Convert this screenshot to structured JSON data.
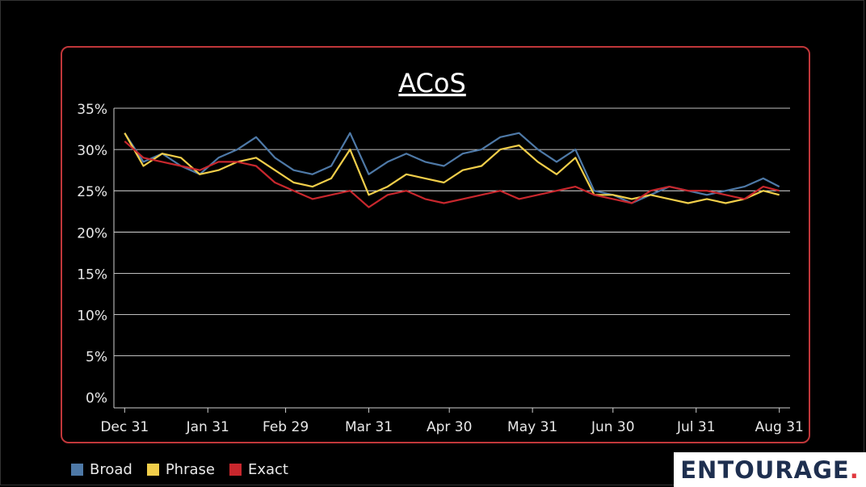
{
  "chart_data": {
    "type": "line",
    "title": "ACoS",
    "xlabel": "",
    "ylabel": "",
    "ylim": [
      -0.013,
      0.35
    ],
    "yticks": [
      0,
      0.05,
      0.1,
      0.15,
      0.2,
      0.25,
      0.3,
      0.35
    ],
    "ytick_labels": [
      "0%",
      "5%",
      "10%",
      "15%",
      "20%",
      "25%",
      "30%",
      "35%"
    ],
    "xlim": [
      "2023-12-27",
      "2024-09-04"
    ],
    "xticks": [
      "2023-12-31",
      "2024-01-31",
      "2024-02-29",
      "2024-03-31",
      "2024-04-30",
      "2024-05-31",
      "2024-06-30",
      "2024-07-31",
      "2024-08-31"
    ],
    "xtick_labels": [
      "Dec 31",
      "Jan 31",
      "Feb 29",
      "Mar 31",
      "Apr 30",
      "May 31",
      "Jun 30",
      "Jul 31",
      "Aug 31"
    ],
    "grid": true,
    "legend_placement": "bottom-left",
    "x": [
      "2023-12-31",
      "2024-01-07",
      "2024-01-14",
      "2024-01-21",
      "2024-01-28",
      "2024-02-04",
      "2024-02-11",
      "2024-02-18",
      "2024-02-25",
      "2024-03-03",
      "2024-03-10",
      "2024-03-17",
      "2024-03-24",
      "2024-03-31",
      "2024-04-07",
      "2024-04-14",
      "2024-04-21",
      "2024-04-28",
      "2024-05-05",
      "2024-05-12",
      "2024-05-19",
      "2024-05-26",
      "2024-06-02",
      "2024-06-09",
      "2024-06-16",
      "2024-06-23",
      "2024-06-30",
      "2024-07-07",
      "2024-07-14",
      "2024-07-21",
      "2024-07-28",
      "2024-08-04",
      "2024-08-11",
      "2024-08-18",
      "2024-08-25",
      "2024-08-31"
    ],
    "series": [
      {
        "name": "Broad",
        "color": "#4e79a7",
        "values": [
          0.32,
          0.285,
          0.295,
          0.28,
          0.27,
          0.29,
          0.3,
          0.315,
          0.29,
          0.275,
          0.27,
          0.28,
          0.32,
          0.27,
          0.285,
          0.295,
          0.285,
          0.28,
          0.295,
          0.3,
          0.315,
          0.32,
          0.3,
          0.285,
          0.3,
          0.25,
          0.245,
          0.235,
          0.245,
          0.255,
          0.25,
          0.245,
          0.25,
          0.255,
          0.265,
          0.255
        ]
      },
      {
        "name": "Phrase",
        "color": "#f1ce4a",
        "values": [
          0.32,
          0.28,
          0.295,
          0.29,
          0.27,
          0.275,
          0.285,
          0.29,
          0.275,
          0.26,
          0.255,
          0.265,
          0.3,
          0.245,
          0.255,
          0.27,
          0.265,
          0.26,
          0.275,
          0.28,
          0.3,
          0.305,
          0.285,
          0.27,
          0.29,
          0.245,
          0.245,
          0.24,
          0.245,
          0.24,
          0.235,
          0.24,
          0.235,
          0.24,
          0.25,
          0.245
        ]
      },
      {
        "name": "Exact",
        "color": "#c8272d",
        "values": [
          0.31,
          0.29,
          0.285,
          0.28,
          0.275,
          0.285,
          0.285,
          0.28,
          0.26,
          0.25,
          0.24,
          0.245,
          0.25,
          0.23,
          0.245,
          0.25,
          0.24,
          0.235,
          0.24,
          0.245,
          0.25,
          0.24,
          0.245,
          0.25,
          0.255,
          0.245,
          0.24,
          0.235,
          0.25,
          0.255,
          0.25,
          0.25,
          0.245,
          0.24,
          0.255,
          0.25
        ]
      }
    ]
  },
  "legend": {
    "items": [
      {
        "label": "Broad",
        "color": "#4e79a7"
      },
      {
        "label": "Phrase",
        "color": "#f1ce4a"
      },
      {
        "label": "Exact",
        "color": "#c8272d"
      }
    ]
  },
  "logo": {
    "text": "ENTOURAGE",
    "dot": "."
  },
  "colors": {
    "background": "#000000",
    "panel_border": "#c0373a",
    "grid": "#ffffff",
    "text": "#e8e8e8"
  }
}
